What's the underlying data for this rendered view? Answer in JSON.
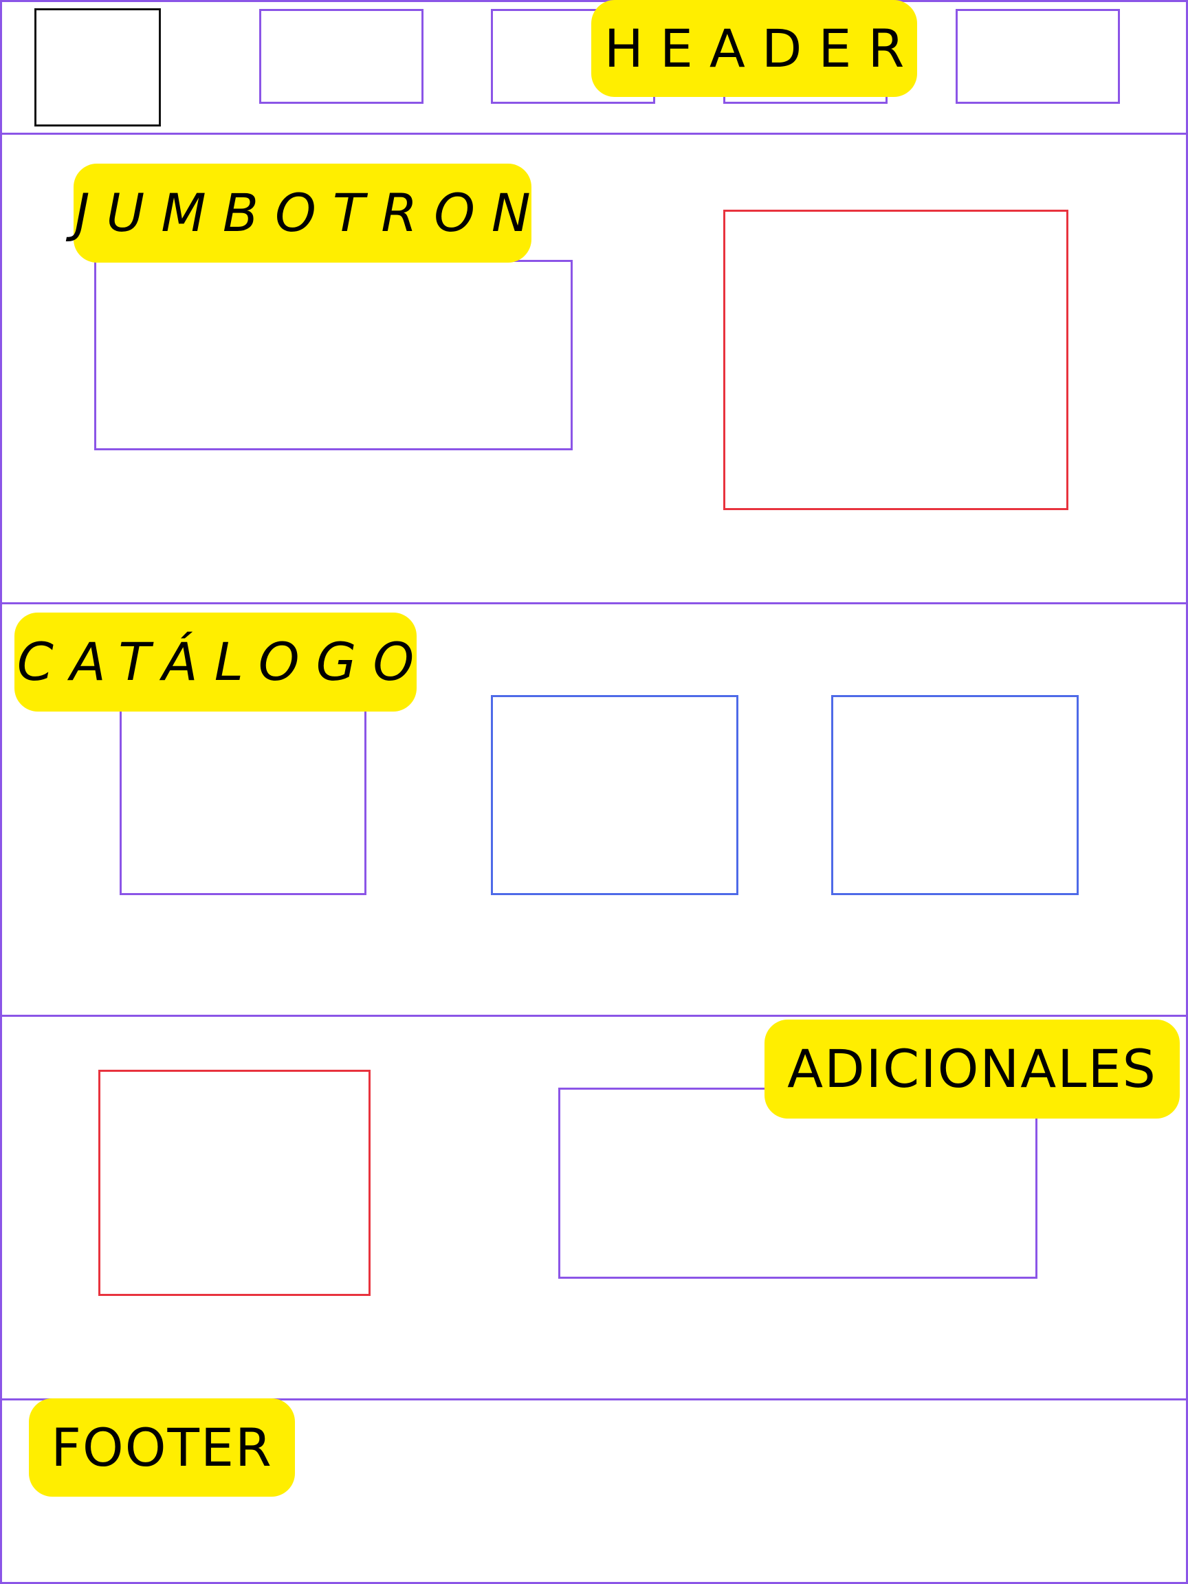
{
  "colors": {
    "frame": "#8b55e7",
    "placeholder_purple": "#8b55e7",
    "placeholder_red": "#e8333e",
    "placeholder_blue": "#4e6ae8",
    "placeholder_black": "#111111",
    "label_background": "#ffee00",
    "label_text": "#000000"
  },
  "sections": {
    "header": {
      "label": "HEADER"
    },
    "jumbotron": {
      "label": "JUMBOTRON"
    },
    "catalog": {
      "label": "CATÁLOGO"
    },
    "additional": {
      "label": "ADICIONALES"
    },
    "footer": {
      "label": "FOOTER"
    }
  }
}
